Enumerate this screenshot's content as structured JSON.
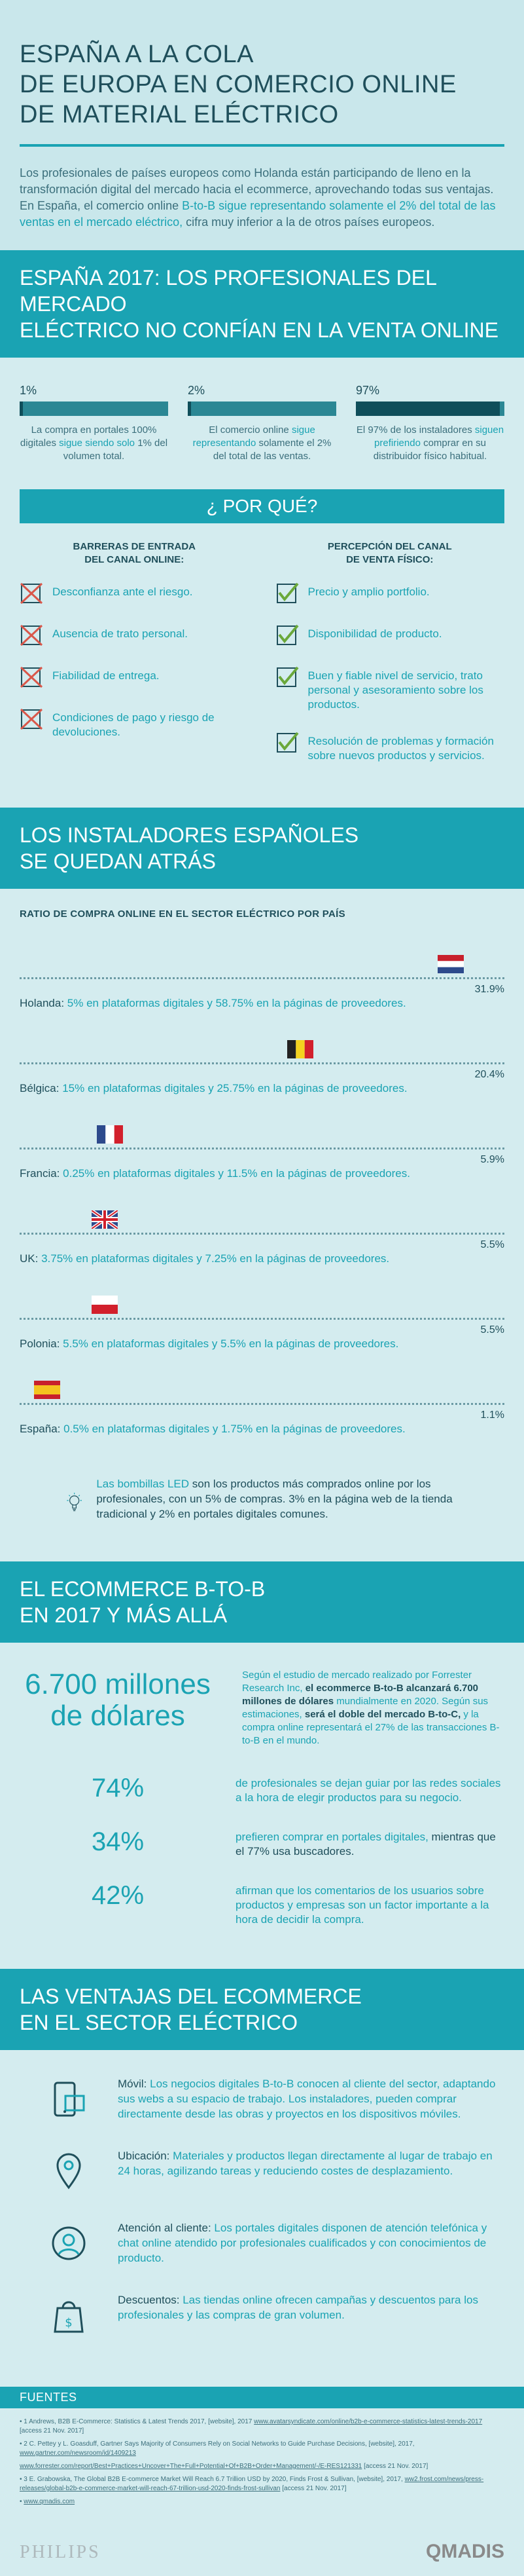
{
  "header": {
    "title_line1": "ESPAÑA A LA COLA",
    "title_line2": "DE EUROPA EN COMERCIO ONLINE",
    "title_line3": "DE MATERIAL ELÉCTRICO",
    "intro_plain": "Los profesionales de países europeos como Holanda están participando de lleno en la transformación digital del mercado hacia el ecommerce, aprovechando todas sus ventajas. En España, el comercio online ",
    "intro_highlight": "B-to-B sigue representando solamente el 2% del total de las ventas en el mercado eléctrico,",
    "intro_end": " cifra muy inferior a la de otros países europeos."
  },
  "spain2017": {
    "title_line1": "ESPAÑA 2017: LOS PROFESIONALES DEL MERCADO",
    "title_line2": "ELÉCTRICO NO CONFÍAN EN LA VENTA ONLINE",
    "stats": [
      {
        "value": "1%",
        "fill": 0.01,
        "text_a": "La compra en portales 100% digitales ",
        "text_b": "sigue siendo solo",
        "text_c": " 1% del volumen total."
      },
      {
        "value": "2%",
        "fill": 0.02,
        "text_a": "El comercio online ",
        "text_b": "sigue representando",
        "text_c": " solamente el 2% del total de las ventas."
      },
      {
        "value": "97%",
        "fill": 0.97,
        "text_a": "El 97% de los instaladores ",
        "text_b": "siguen prefiriendo",
        "text_c": " comprar en su distribuidor físico habitual."
      }
    ]
  },
  "why": {
    "title": "¿ POR QUÉ?",
    "left_title_line1": "BARRERAS DE ENTRADA",
    "left_title_line2": "DEL CANAL ONLINE:",
    "left_items": [
      "Desconfianza ante el riesgo.",
      "Ausencia de trato personal.",
      "Fiabilidad de entrega.",
      "Condiciones de pago y riesgo de devoluciones."
    ],
    "right_title_line1": "PERCEPCIÓN DEL CANAL",
    "right_title_line2": "DE VENTA FÍSICO:",
    "right_items": [
      "Precio y amplio portfolio.",
      "Disponibilidad de producto.",
      "Buen y fiable nivel de servicio, trato personal y asesoramiento sobre los productos.",
      "Resolución de problemas y formación sobre nuevos productos y servicios."
    ]
  },
  "installers": {
    "title_line1": "LOS INSTALADORES ESPAÑOLES",
    "title_line2": "SE QUEDAN ATRÁS",
    "subtitle": "RATIO DE COMPRA ONLINE EN EL SECTOR ELÉCTRICO POR PAÍS",
    "countries": [
      {
        "country": "Holanda:",
        "pct": "31.9%",
        "value": 31.9,
        "desc": " 5% en plataformas digitales y 58.75% en la páginas de proveedores.",
        "flag": "netherlands-flag-icon"
      },
      {
        "country": "Bélgica:",
        "pct": "20.4%",
        "value": 20.4,
        "desc": " 15% en plataformas digitales y 25.75% en la páginas de proveedores.",
        "flag": "belgium-flag-icon"
      },
      {
        "country": "Francia:",
        "pct": "5.9%",
        "value": 5.9,
        "desc": " 0.25% en plataformas digitales y 11.5% en la páginas de proveedores.",
        "flag": "france-flag-icon"
      },
      {
        "country": "UK:",
        "pct": "5.5%",
        "value": 5.5,
        "desc": " 3.75% en plataformas digitales y 7.25% en la páginas de proveedores.",
        "flag": "uk-flag-icon"
      },
      {
        "country": "Polonia:",
        "pct": "5.5%",
        "value": 5.5,
        "desc": " 5.5% en plataformas digitales y 5.5% en la páginas de proveedores.",
        "flag": "poland-flag-icon"
      },
      {
        "country": "España:",
        "pct": "1.1%",
        "value": 1.1,
        "desc": " 0.5% en plataformas digitales y 1.75% en la páginas de proveedores.",
        "flag": "spain-flag-icon"
      }
    ],
    "bulb_bold": "Las bombillas LED",
    "bulb_text": " son los productos más comprados online por los profesionales, con un 5% de compras. 3% en la página web de la tienda tradicional y 2% en portales digitales comunes."
  },
  "ecommerce": {
    "title_line1": "EL ECOMMERCE B-TO-B",
    "title_line2": "EN 2017 Y MÁS ALLÁ",
    "big_value": "6.700 millones de dólares",
    "text_a": "Según el estudio de mercado realizado por Forrester Research Inc, ",
    "text_b": "el ecommerce B-to-B alcanzará 6.700 millones de dólares",
    "text_c": " mundialmente en 2020. Según sus estimaciones, ",
    "text_d": "será el doble del mercado B-to-C,",
    "text_e": " y la compra online representará el 27% de las transacciones B-to-B en el mundo.",
    "rows": [
      {
        "pct": "74%",
        "a": "de profesionales se dejan guiar por las redes sociales a la hora de elegir productos para su negocio.",
        "b": ""
      },
      {
        "pct": "34%",
        "a": "prefieren comprar en portales digitales,",
        "b": " mientras que el 77% usa buscadores."
      },
      {
        "pct": "42%",
        "a": "afirman que los comentarios de los usuarios sobre productos y empresas son un factor importante a la hora de decidir la compra.",
        "b": ""
      }
    ]
  },
  "advantages": {
    "title_line1": "LAS VENTAJAS DEL ECOMMERCE",
    "title_line2": "EN EL SECTOR ELÉCTRICO",
    "items": [
      {
        "label": "Móvil:",
        "text": " Los negocios digitales B-to-B conocen al cliente del sector, adaptando sus webs a su espacio de trabajo. Los instaladores, pueden comprar directamente desde las obras y proyectos en los dispositivos móviles."
      },
      {
        "label": "Ubicación:",
        "text": " Materiales y productos llegan directamente al lugar de trabajo en 24 horas, agilizando tareas y reduciendo costes de desplazamiento."
      },
      {
        "label": "Atención al cliente:",
        "text": " Los portales digitales disponen de atención telefónica y chat online atendido por profesionales cualificados y con conocimientos de producto."
      },
      {
        "label": "Descuentos:",
        "text": " Las tiendas online ofrecen campañas y descuentos para los profesionales y las compras de gran volumen."
      }
    ]
  },
  "sources": {
    "title": "FUENTES",
    "items": [
      {
        "text": "• 1 Andrews, B2B E-Commerce: Statistics & Latest Trends 2017, [website], 2017 ",
        "link": "www.avatarsyndicate.com/online/b2b-e-commerce-statistics-latest-trends-2017",
        "tail": " [access 21 Nov. 2017]"
      },
      {
        "text": "• 2 C. Pettey y L. Goasduff, Gartner Says Majority of Consumers Rely on Social Networks to Guide Purchase Decisions, [website], 2017, ",
        "link": "www.gartner.com/newsroom/id/1409213",
        "tail": ""
      },
      {
        "text": "",
        "link": "www.forrester.com/report/Best+Practices+Uncover+The+Full+Potential+Of+B2B+Order+Management/-/E-RES121331",
        "tail": " [access 21 Nov. 2017]"
      },
      {
        "text": "• 3 E. Grabowska, The Global B2B E-commerce Market Will Reach 6.7 Trillion USD by 2020, Finds Frost & Sullivan, [website], 2017, ",
        "link": "ww2.frost.com/news/press-releases/global-b2b-e-commerce-market-will-reach-67-trillion-usd-2020-finds-frost-sullivan",
        "tail": " [access 21 Nov. 2017]"
      },
      {
        "text": "• ",
        "link": "www.qmadis.com",
        "tail": ""
      }
    ],
    "brand_left": "PHILIPS",
    "brand_right": "QMADIS"
  },
  "colors": {
    "accent": "#1aa3b3",
    "dark": "#1f4f5b",
    "background": "#d4ecef",
    "bar_dark": "#0f4e5a"
  }
}
